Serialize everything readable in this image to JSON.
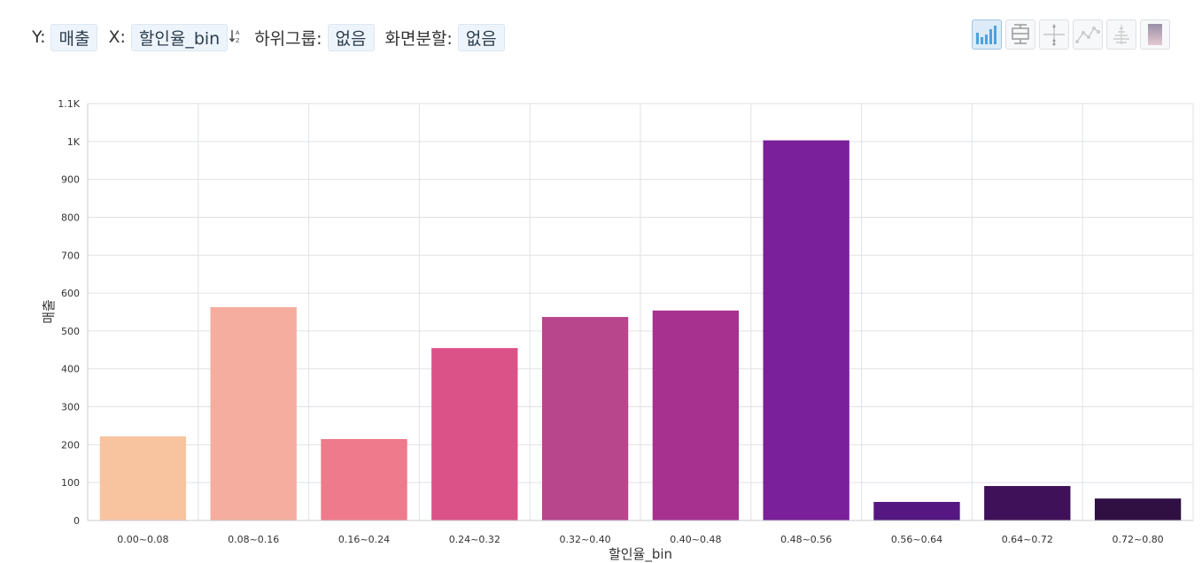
{
  "controls": {
    "y_label": "Y:",
    "y_value": "매출",
    "x_label": "X:",
    "x_value": "할인율_bin",
    "subgroup_label": "하위그룹:",
    "subgroup_value": "없음",
    "split_label": "화면분할:",
    "split_value": "없음"
  },
  "toolbar": {
    "buttons": [
      "bar-chart-icon",
      "box-plot-icon",
      "scatter-icon",
      "line-chart-icon",
      "distribution-icon",
      "heatmap-icon"
    ],
    "active": "bar-chart-icon"
  },
  "chart_data": {
    "type": "bar",
    "categories": [
      "0.00~0.08",
      "0.08~0.16",
      "0.16~0.24",
      "0.24~0.32",
      "0.32~0.40",
      "0.40~0.48",
      "0.48~0.56",
      "0.56~0.64",
      "0.64~0.72",
      "0.72~0.80"
    ],
    "values": [
      222,
      563,
      215,
      455,
      537,
      554,
      1003,
      49,
      91,
      58
    ],
    "colors": [
      "#f8c4a0",
      "#f4ad9f",
      "#ee7a8c",
      "#db5288",
      "#b8468c",
      "#a6318e",
      "#79209a",
      "#551882",
      "#3f1158",
      "#300f42"
    ],
    "xlabel": "할인율_bin",
    "ylabel": "매출",
    "ylim": [
      0,
      1100
    ],
    "yticks": [
      0,
      100,
      200,
      300,
      400,
      500,
      600,
      700,
      800,
      900,
      1000,
      1100
    ],
    "ytick_labels": [
      "0",
      "100",
      "200",
      "300",
      "400",
      "500",
      "600",
      "700",
      "800",
      "900",
      "1K",
      "1.1K"
    ],
    "grid": true
  }
}
